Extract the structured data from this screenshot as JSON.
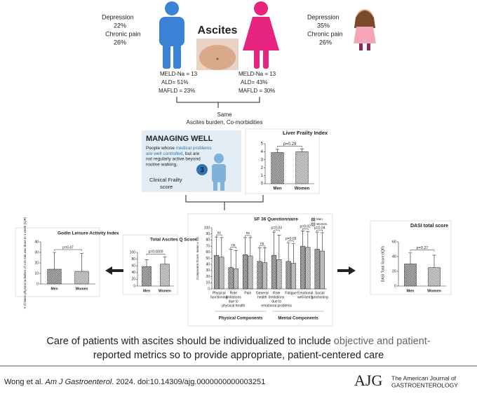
{
  "left_stats": [
    "Depression",
    "22%",
    "Chronic pain",
    "26%"
  ],
  "right_stats": [
    "Depression",
    "35%",
    "Chronic pain",
    "26%"
  ],
  "center_title": "Ascites",
  "men_scores": [
    "MELD-Na = 13",
    "ALD= 51%",
    "MAFLD = 23%"
  ],
  "women_scores": [
    "MELD-Na = 13",
    "ALD= 43%",
    "MAFLD = 30%"
  ],
  "same": [
    "Same",
    "Ascites burden, Co-morbidities"
  ],
  "managing": {
    "title": "MANAGING WELL",
    "lines": [
      [
        "People whose ",
        "medical problems"
      ],
      [
        "are well controlled",
        ", but are"
      ],
      [
        "not regularly active beyond"
      ],
      [
        "routine walking."
      ]
    ],
    "number": "3",
    "caption": [
      "Clinical Frailty",
      "score"
    ]
  },
  "chart_data": [
    {
      "type": "bar",
      "title": "Liver Frailty Index",
      "categories": [
        "Men",
        "Women"
      ],
      "values": [
        3.9,
        4.0
      ],
      "errors": [
        0.4,
        0.35
      ],
      "colors": [
        "#444444",
        "#888888"
      ],
      "ylim": [
        0,
        5
      ],
      "yticks": [
        0,
        1,
        2,
        3,
        4,
        5
      ],
      "annotation": "p=0.29"
    },
    {
      "type": "bar",
      "title": "Godin Leisure Activity Index",
      "ylabel": "# of times physical activities of ≥15 min was done in 1 week (IQR)",
      "categories": [
        "Men",
        "Women"
      ],
      "values": [
        14,
        12
      ],
      "errors": [
        16,
        17
      ],
      "colors": [
        "#444444",
        "#888888"
      ],
      "ylim": [
        0,
        40
      ],
      "yticks": [
        0,
        10,
        20,
        30,
        40
      ],
      "annotation": "p=0.47"
    },
    {
      "type": "bar",
      "title": "Total Ascites Q Score",
      "categories": [
        "Men",
        "Women"
      ],
      "values": [
        58,
        65
      ],
      "errors": [
        20,
        22
      ],
      "colors": [
        "#444444",
        "#888888"
      ],
      "ylim": [
        0,
        100
      ],
      "yticks": [
        0,
        20,
        40,
        60,
        80,
        100
      ],
      "annotation": "p=0.0009"
    },
    {
      "type": "grouped_bar",
      "title": "SF 36 Questionnaire",
      "ylabel": "Component Score, mean ± SD",
      "categories": [
        [
          "Physical",
          "functioning"
        ],
        [
          "Role",
          "limitations",
          "due to",
          "physical health"
        ],
        [
          "Pain"
        ],
        [
          "General",
          "health"
        ],
        [
          "Role",
          "limitations",
          "due to",
          "emotional problems"
        ],
        [
          "Fatigue"
        ],
        [
          "Emotional",
          "well-being"
        ],
        [
          "Social",
          "functioning"
        ]
      ],
      "series": [
        {
          "name": "Men",
          "color": "#444444",
          "values": [
            55,
            35,
            56,
            45,
            55,
            45,
            70,
            65
          ],
          "errors": [
            30,
            30,
            28,
            22,
            38,
            30,
            25,
            28
          ]
        },
        {
          "name": "Women",
          "color": "#888888",
          "values": [
            52,
            33,
            54,
            43,
            48,
            42,
            68,
            62
          ],
          "errors": [
            32,
            30,
            30,
            24,
            40,
            32,
            26,
            30
          ]
        }
      ],
      "ylim": [
        0,
        100
      ],
      "yticks": [
        0,
        10,
        20,
        30,
        40,
        50,
        60,
        70,
        80,
        90,
        100
      ],
      "annotations": [
        "ns",
        "ns",
        "ns",
        "ns",
        "p=0.03",
        "p=0.03",
        "p=0.02",
        "p=0.04"
      ],
      "groups": [
        "Physical Components",
        "Mental Components"
      ],
      "legend": "upper right"
    },
    {
      "type": "bar",
      "title": "DASI total score",
      "ylabel": "DASI Total Score (IQR)",
      "categories": [
        "Men",
        "Women"
      ],
      "values": [
        30,
        25
      ],
      "errors": [
        15,
        17
      ],
      "colors": [
        "#444444",
        "#888888"
      ],
      "ylim": [
        0,
        60
      ],
      "yticks": [
        0,
        20,
        40,
        60
      ],
      "annotation": "p=0.27"
    }
  ],
  "conclusion": {
    "dark": "Care of patients with ascites should be individualized to include",
    "light_1": " objective and patient-",
    "light_2": "reported metrics so to provide appropriate, patient-centered care"
  },
  "citation": {
    "authors": "Wong et al. ",
    "journal": "Am J Gastroenterol",
    "rest": ". 2024. doi:10.14309/ajg.0000000000003251"
  },
  "logo": {
    "mark": "AJG",
    "line1": "The American Journal of",
    "line2": "GASTROENTEROLOGY"
  }
}
